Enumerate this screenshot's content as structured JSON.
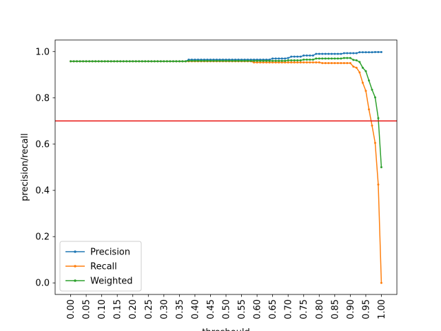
{
  "chart_data": {
    "type": "line",
    "xlabel": "threshould",
    "ylabel": "precision/recall",
    "xlim": [
      -0.05,
      1.05
    ],
    "ylim": [
      -0.05,
      1.05
    ],
    "x_ticks": [
      "0.00",
      "0.05",
      "0.10",
      "0.15",
      "0.20",
      "0.25",
      "0.30",
      "0.35",
      "0.40",
      "0.45",
      "0.50",
      "0.55",
      "0.60",
      "0.65",
      "0.70",
      "0.75",
      "0.80",
      "0.85",
      "0.90",
      "0.95",
      "1.00"
    ],
    "y_ticks": [
      "0.0",
      "0.2",
      "0.4",
      "0.6",
      "0.8",
      "1.0"
    ],
    "hline": {
      "y": 0.7,
      "color": "#e8110f"
    },
    "legend_position": "lower-left",
    "grid": false,
    "x": [
      0,
      0.01,
      0.02,
      0.03,
      0.04,
      0.05,
      0.06,
      0.07,
      0.08,
      0.09,
      0.1,
      0.11,
      0.12,
      0.13,
      0.14,
      0.15,
      0.16,
      0.17,
      0.18,
      0.19,
      0.2,
      0.21,
      0.22,
      0.23,
      0.24,
      0.25,
      0.26,
      0.27,
      0.28,
      0.29,
      0.3,
      0.31,
      0.32,
      0.33,
      0.34,
      0.35,
      0.36,
      0.37,
      0.38,
      0.39,
      0.4,
      0.41,
      0.42,
      0.43,
      0.44,
      0.45,
      0.46,
      0.47,
      0.48,
      0.49,
      0.5,
      0.51,
      0.52,
      0.53,
      0.54,
      0.55,
      0.56,
      0.57,
      0.58,
      0.59,
      0.6,
      0.61,
      0.62,
      0.63,
      0.64,
      0.65,
      0.66,
      0.67,
      0.68,
      0.69,
      0.7,
      0.71,
      0.72,
      0.73,
      0.74,
      0.75,
      0.76,
      0.77,
      0.78,
      0.79,
      0.8,
      0.81,
      0.82,
      0.83,
      0.84,
      0.85,
      0.86,
      0.87,
      0.88,
      0.89,
      0.9,
      0.91,
      0.92,
      0.93,
      0.94,
      0.95,
      0.96,
      0.97,
      0.98,
      0.99,
      1.0
    ],
    "series": [
      {
        "name": "Precision",
        "color": "#1f77b4",
        "values": [
          0.958,
          0.958,
          0.958,
          0.958,
          0.958,
          0.958,
          0.958,
          0.958,
          0.958,
          0.958,
          0.958,
          0.958,
          0.958,
          0.958,
          0.958,
          0.958,
          0.958,
          0.958,
          0.958,
          0.958,
          0.958,
          0.958,
          0.958,
          0.958,
          0.958,
          0.958,
          0.958,
          0.958,
          0.958,
          0.958,
          0.958,
          0.958,
          0.958,
          0.958,
          0.958,
          0.958,
          0.958,
          0.958,
          0.965,
          0.965,
          0.965,
          0.965,
          0.965,
          0.965,
          0.965,
          0.965,
          0.965,
          0.965,
          0.965,
          0.965,
          0.965,
          0.965,
          0.965,
          0.965,
          0.965,
          0.965,
          0.965,
          0.965,
          0.965,
          0.965,
          0.965,
          0.965,
          0.965,
          0.965,
          0.965,
          0.97,
          0.97,
          0.97,
          0.97,
          0.97,
          0.972,
          0.978,
          0.978,
          0.978,
          0.978,
          0.983,
          0.983,
          0.983,
          0.983,
          0.99,
          0.99,
          0.99,
          0.99,
          0.99,
          0.99,
          0.99,
          0.99,
          0.99,
          0.993,
          0.993,
          0.993,
          0.993,
          0.993,
          0.997,
          0.997,
          0.997,
          0.997,
          0.997,
          0.998,
          0.998,
          0.998
        ]
      },
      {
        "name": "Recall",
        "color": "#ff7f0e",
        "values": [
          0.958,
          0.958,
          0.958,
          0.958,
          0.958,
          0.958,
          0.958,
          0.958,
          0.958,
          0.958,
          0.958,
          0.958,
          0.958,
          0.958,
          0.958,
          0.958,
          0.958,
          0.958,
          0.958,
          0.958,
          0.958,
          0.958,
          0.958,
          0.958,
          0.958,
          0.958,
          0.958,
          0.958,
          0.958,
          0.958,
          0.958,
          0.958,
          0.958,
          0.958,
          0.958,
          0.958,
          0.958,
          0.958,
          0.958,
          0.958,
          0.958,
          0.958,
          0.958,
          0.958,
          0.958,
          0.958,
          0.958,
          0.958,
          0.958,
          0.958,
          0.958,
          0.958,
          0.958,
          0.958,
          0.958,
          0.958,
          0.958,
          0.958,
          0.958,
          0.953,
          0.953,
          0.953,
          0.953,
          0.953,
          0.953,
          0.953,
          0.953,
          0.953,
          0.953,
          0.953,
          0.953,
          0.953,
          0.953,
          0.953,
          0.953,
          0.953,
          0.953,
          0.953,
          0.953,
          0.953,
          0.953,
          0.95,
          0.95,
          0.95,
          0.95,
          0.95,
          0.95,
          0.95,
          0.95,
          0.95,
          0.95,
          0.935,
          0.93,
          0.91,
          0.865,
          0.83,
          0.75,
          0.68,
          0.605,
          0.425,
          0.0
        ]
      },
      {
        "name": "Weighted",
        "color": "#2ca02c",
        "values": [
          0.958,
          0.958,
          0.958,
          0.958,
          0.958,
          0.958,
          0.958,
          0.958,
          0.958,
          0.958,
          0.958,
          0.958,
          0.958,
          0.958,
          0.958,
          0.958,
          0.958,
          0.958,
          0.958,
          0.958,
          0.958,
          0.958,
          0.958,
          0.958,
          0.958,
          0.958,
          0.958,
          0.958,
          0.958,
          0.958,
          0.958,
          0.958,
          0.958,
          0.958,
          0.958,
          0.958,
          0.958,
          0.958,
          0.96,
          0.96,
          0.96,
          0.96,
          0.96,
          0.96,
          0.96,
          0.96,
          0.96,
          0.96,
          0.96,
          0.96,
          0.96,
          0.96,
          0.96,
          0.96,
          0.96,
          0.96,
          0.96,
          0.96,
          0.96,
          0.96,
          0.96,
          0.96,
          0.96,
          0.96,
          0.96,
          0.96,
          0.96,
          0.96,
          0.96,
          0.96,
          0.962,
          0.962,
          0.962,
          0.962,
          0.962,
          0.965,
          0.965,
          0.965,
          0.965,
          0.97,
          0.97,
          0.97,
          0.97,
          0.97,
          0.97,
          0.97,
          0.97,
          0.97,
          0.972,
          0.972,
          0.972,
          0.964,
          0.962,
          0.955,
          0.93,
          0.915,
          0.875,
          0.835,
          0.802,
          0.712,
          0.5
        ]
      }
    ]
  }
}
